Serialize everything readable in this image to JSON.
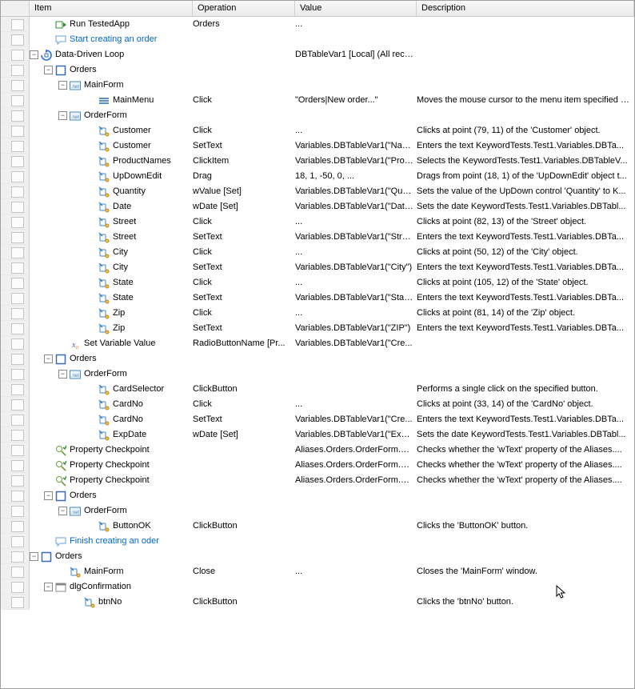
{
  "columns": {
    "gutter": "",
    "item": "Item",
    "operation": "Operation",
    "value": "Value",
    "description": "Description"
  },
  "widths": {
    "gutter": 36,
    "item": 204,
    "op": 128,
    "val": 152
  },
  "indentUnit": 18,
  "rows": [
    {
      "indent": 1,
      "tw": "",
      "icon": "run",
      "label": "Run TestedApp",
      "op": "Orders",
      "val": "...",
      "desc": ""
    },
    {
      "indent": 1,
      "tw": "",
      "icon": "comment",
      "label": "Start creating an order",
      "cls": "blue",
      "op": "",
      "val": "",
      "desc": ""
    },
    {
      "indent": 0,
      "tw": "-",
      "icon": "loop",
      "label": "Data-Driven Loop",
      "op": "",
      "val": "DBTableVar1 [Local] (All reco...",
      "desc": ""
    },
    {
      "indent": 1,
      "tw": "-",
      "icon": "app",
      "label": "Orders",
      "op": "",
      "val": "",
      "desc": ""
    },
    {
      "indent": 2,
      "tw": "-",
      "icon": "net",
      "label": "MainForm",
      "op": "",
      "val": "",
      "desc": ""
    },
    {
      "indent": 4,
      "tw": "",
      "icon": "menu",
      "label": "MainMenu",
      "op": "Click",
      "val": "\"Orders|New order...\"",
      "desc": "Moves the mouse cursor to the menu item specified a..."
    },
    {
      "indent": 2,
      "tw": "-",
      "icon": "net",
      "label": "OrderForm",
      "op": "",
      "val": "",
      "desc": ""
    },
    {
      "indent": 4,
      "tw": "",
      "icon": "action",
      "label": "Customer",
      "op": "Click",
      "val": "...",
      "desc": "Clicks at point (79, 11) of the 'Customer' object."
    },
    {
      "indent": 4,
      "tw": "",
      "icon": "action",
      "label": "Customer",
      "op": "SetText",
      "val": "Variables.DBTableVar1(\"Nam...",
      "desc": "Enters the text KeywordTests.Test1.Variables.DBTa..."
    },
    {
      "indent": 4,
      "tw": "",
      "icon": "action",
      "label": "ProductNames",
      "op": "ClickItem",
      "val": "Variables.DBTableVar1(\"Prod...",
      "desc": "Selects the KeywordTests.Test1.Variables.DBTableV..."
    },
    {
      "indent": 4,
      "tw": "",
      "icon": "action",
      "label": "UpDownEdit",
      "op": "Drag",
      "val": "18, 1, -50, 0, ...",
      "desc": "Drags from point (18, 1) of the 'UpDownEdit' object t..."
    },
    {
      "indent": 4,
      "tw": "",
      "icon": "action",
      "label": "Quantity",
      "op": "wValue [Set]",
      "val": "Variables.DBTableVar1(\"Qua...",
      "desc": "Sets the value of the UpDown control 'Quantity' to K..."
    },
    {
      "indent": 4,
      "tw": "",
      "icon": "action",
      "label": "Date",
      "op": "wDate [Set]",
      "val": "Variables.DBTableVar1(\"Date\")",
      "desc": "Sets the date KeywordTests.Test1.Variables.DBTabl..."
    },
    {
      "indent": 4,
      "tw": "",
      "icon": "action",
      "label": "Street",
      "op": "Click",
      "val": "...",
      "desc": "Clicks at point (82, 13) of the 'Street' object."
    },
    {
      "indent": 4,
      "tw": "",
      "icon": "action",
      "label": "Street",
      "op": "SetText",
      "val": "Variables.DBTableVar1(\"Stre...",
      "desc": "Enters the text KeywordTests.Test1.Variables.DBTa..."
    },
    {
      "indent": 4,
      "tw": "",
      "icon": "action",
      "label": "City",
      "op": "Click",
      "val": "...",
      "desc": "Clicks at point (50, 12) of the 'City' object."
    },
    {
      "indent": 4,
      "tw": "",
      "icon": "action",
      "label": "City",
      "op": "SetText",
      "val": "Variables.DBTableVar1(\"City\")",
      "desc": "Enters the text KeywordTests.Test1.Variables.DBTa..."
    },
    {
      "indent": 4,
      "tw": "",
      "icon": "action",
      "label": "State",
      "op": "Click",
      "val": "...",
      "desc": "Clicks at point (105, 12) of the 'State' object."
    },
    {
      "indent": 4,
      "tw": "",
      "icon": "action",
      "label": "State",
      "op": "SetText",
      "val": "Variables.DBTableVar1(\"State\")",
      "desc": "Enters the text KeywordTests.Test1.Variables.DBTa..."
    },
    {
      "indent": 4,
      "tw": "",
      "icon": "action",
      "label": "Zip",
      "op": "Click",
      "val": "...",
      "desc": "Clicks at point (81, 14) of the 'Zip' object."
    },
    {
      "indent": 4,
      "tw": "",
      "icon": "action",
      "label": "Zip",
      "op": "SetText",
      "val": "Variables.DBTableVar1(\"ZIP\")",
      "desc": "Enters the text KeywordTests.Test1.Variables.DBTa..."
    },
    {
      "indent": 2,
      "tw": "",
      "icon": "var",
      "label": "Set Variable Value",
      "op": "RadioButtonName [Pr...",
      "val": "Variables.DBTableVar1(\"Cre...",
      "desc": ""
    },
    {
      "indent": 1,
      "tw": "-",
      "icon": "app",
      "label": "Orders",
      "op": "",
      "val": "",
      "desc": ""
    },
    {
      "indent": 2,
      "tw": "-",
      "icon": "net",
      "label": "OrderForm",
      "op": "",
      "val": "",
      "desc": ""
    },
    {
      "indent": 4,
      "tw": "",
      "icon": "action",
      "label": "CardSelector",
      "op": "ClickButton",
      "val": "",
      "desc": "Performs a single click on the specified button."
    },
    {
      "indent": 4,
      "tw": "",
      "icon": "action",
      "label": "CardNo",
      "op": "Click",
      "val": "...",
      "desc": "Clicks at point (33, 14) of the 'CardNo' object."
    },
    {
      "indent": 4,
      "tw": "",
      "icon": "action",
      "label": "CardNo",
      "op": "SetText",
      "val": "Variables.DBTableVar1(\"Cre...",
      "desc": "Enters the text KeywordTests.Test1.Variables.DBTa..."
    },
    {
      "indent": 4,
      "tw": "",
      "icon": "action",
      "label": "ExpDate",
      "op": "wDate [Set]",
      "val": "Variables.DBTableVar1(\"Expi...",
      "desc": "Sets the date KeywordTests.Test1.Variables.DBTabl..."
    },
    {
      "indent": 1,
      "tw": "",
      "icon": "check",
      "label": "Property Checkpoint",
      "op": "",
      "val": "Aliases.Orders.OrderForm.G...",
      "desc": "Checks whether the 'wText' property of the Aliases...."
    },
    {
      "indent": 1,
      "tw": "",
      "icon": "check",
      "label": "Property Checkpoint",
      "op": "",
      "val": "Aliases.Orders.OrderForm.G...",
      "desc": "Checks whether the 'wText' property of the Aliases...."
    },
    {
      "indent": 1,
      "tw": "",
      "icon": "check",
      "label": "Property Checkpoint",
      "op": "",
      "val": "Aliases.Orders.OrderForm.G...",
      "desc": "Checks whether the 'wText' property of the Aliases...."
    },
    {
      "indent": 1,
      "tw": "-",
      "icon": "app",
      "label": "Orders",
      "op": "",
      "val": "",
      "desc": ""
    },
    {
      "indent": 2,
      "tw": "-",
      "icon": "net",
      "label": "OrderForm",
      "op": "",
      "val": "",
      "desc": ""
    },
    {
      "indent": 4,
      "tw": "",
      "icon": "action",
      "label": "ButtonOK",
      "op": "ClickButton",
      "val": "",
      "desc": "Clicks the 'ButtonOK' button."
    },
    {
      "indent": 1,
      "tw": "",
      "icon": "comment",
      "label": "Finish creating an oder",
      "cls": "blue",
      "op": "",
      "val": "",
      "desc": ""
    },
    {
      "indent": 0,
      "tw": "-",
      "icon": "app",
      "label": "Orders",
      "op": "",
      "val": "",
      "desc": ""
    },
    {
      "indent": 2,
      "tw": "",
      "icon": "action",
      "label": "MainForm",
      "op": "Close",
      "val": "...",
      "desc": "Closes the 'MainForm' window."
    },
    {
      "indent": 1,
      "tw": "-",
      "icon": "dlg",
      "label": "dlgConfirmation",
      "op": "",
      "val": "",
      "desc": ""
    },
    {
      "indent": 3,
      "tw": "",
      "icon": "action",
      "label": "btnNo",
      "op": "ClickButton",
      "val": "",
      "desc": "Clicks the 'btnNo' button."
    }
  ],
  "icons": {
    "run": "#2e8b2e",
    "comment": "#6aa0d8",
    "loop": "#2a6fd6",
    "app": "#3b6cb3",
    "net": "#4a88c7",
    "menu": "#5a8fc4",
    "action": "#3f85c6",
    "var": "#3b5fb5",
    "check": "#6b9e3a",
    "dlg": "#8a8a8a"
  }
}
